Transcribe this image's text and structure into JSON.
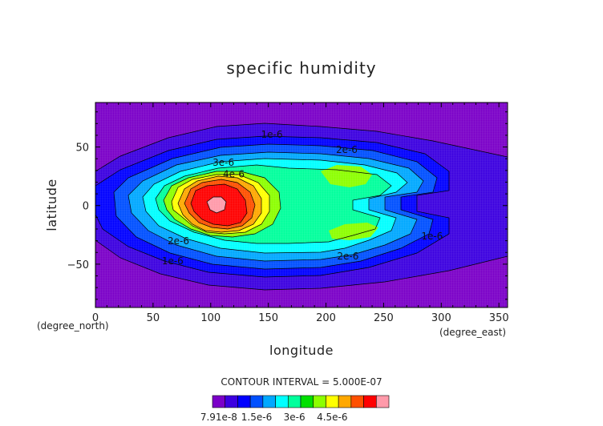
{
  "chart_data": {
    "type": "heatmap",
    "title": "specific humidity",
    "xlabel": "longitude",
    "ylabel": "latitude",
    "xunit": "(degree_east)",
    "yunit": "(degree_north)",
    "xlim": [
      0,
      357.5
    ],
    "ylim": [
      -87,
      88
    ],
    "x_ticks": [
      "0",
      "50",
      "100",
      "150",
      "200",
      "250",
      "300",
      "350"
    ],
    "x_tick_values": [
      0,
      50,
      100,
      150,
      200,
      250,
      300,
      350
    ],
    "y_ticks": [
      "50",
      "0",
      "−50"
    ],
    "y_tick_values": [
      50,
      0,
      -50
    ],
    "contour_interval_text": "CONTOUR INTERVAL = 5.000E-07",
    "contour_labels": [
      {
        "text": "1e-6",
        "lon": 153,
        "lat": 58
      },
      {
        "text": "2e-6",
        "lon": 218,
        "lat": 45
      },
      {
        "text": "3e-6",
        "lon": 111,
        "lat": 34
      },
      {
        "text": "4e-6",
        "lon": 120,
        "lat": 24
      },
      {
        "text": "2e-6",
        "lon": 72,
        "lat": -33
      },
      {
        "text": "1e-6",
        "lon": 67,
        "lat": -50
      },
      {
        "text": "2e-6",
        "lon": 219,
        "lat": -46
      },
      {
        "text": "1e-6",
        "lon": 292,
        "lat": -29
      }
    ],
    "levels": [
      7.91e-08,
      5e-07,
      1e-06,
      1.5e-06,
      2e-06,
      2.5e-06,
      3e-06,
      3.5e-06,
      4e-06,
      4.5e-06,
      5e-06
    ],
    "colorbar": {
      "colors": [
        "#7b00c8",
        "#3c00e0",
        "#0000ff",
        "#0050ff",
        "#00a8ff",
        "#00ffff",
        "#00ff9c",
        "#00e000",
        "#8cff00",
        "#ffff00",
        "#ffa800",
        "#ff5000",
        "#ff0000",
        "#ff9aaa"
      ],
      "tick_labels": [
        "7.91e-8",
        "1.5e-6",
        "3e-6",
        "4.5e-6"
      ]
    }
  }
}
